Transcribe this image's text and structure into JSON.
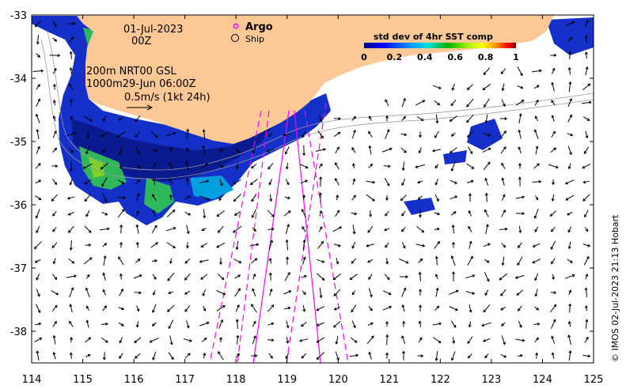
{
  "map": {
    "date_label": "01-Jul-2023",
    "time_label": "00Z",
    "product_label_1": "200m  NRT00 GSL",
    "product_label_2": "1000m29-Jun 06:00Z",
    "velocity_scale_label": "0.5m/s (1kt 24h)",
    "legend": {
      "argo_label": "Argo",
      "ship_label": "Ship",
      "argo_color": "#ff00ff"
    },
    "colorbar": {
      "title": "std dev of 4hr SST comp",
      "ticks": [
        "0",
        "0.2",
        "0.4",
        "0.6",
        "0.8",
        "1"
      ],
      "colors": [
        "#000080",
        "#0000ff",
        "#0080ff",
        "#00ffff",
        "#00c000",
        "#a0ff00",
        "#ffff00",
        "#ff8000",
        "#ff0000",
        "#800000"
      ]
    },
    "credit": "© IMOS 02-Jul-2023 21:13 Hobart",
    "land_color": "#fbc896",
    "x_axis": {
      "ticks": [
        "114",
        "115",
        "116",
        "117",
        "118",
        "119",
        "120",
        "121",
        "122",
        "123",
        "124",
        "125"
      ]
    },
    "y_axis": {
      "ticks": [
        "-33",
        "-34",
        "-35",
        "-36",
        "-37",
        "-38"
      ]
    }
  }
}
